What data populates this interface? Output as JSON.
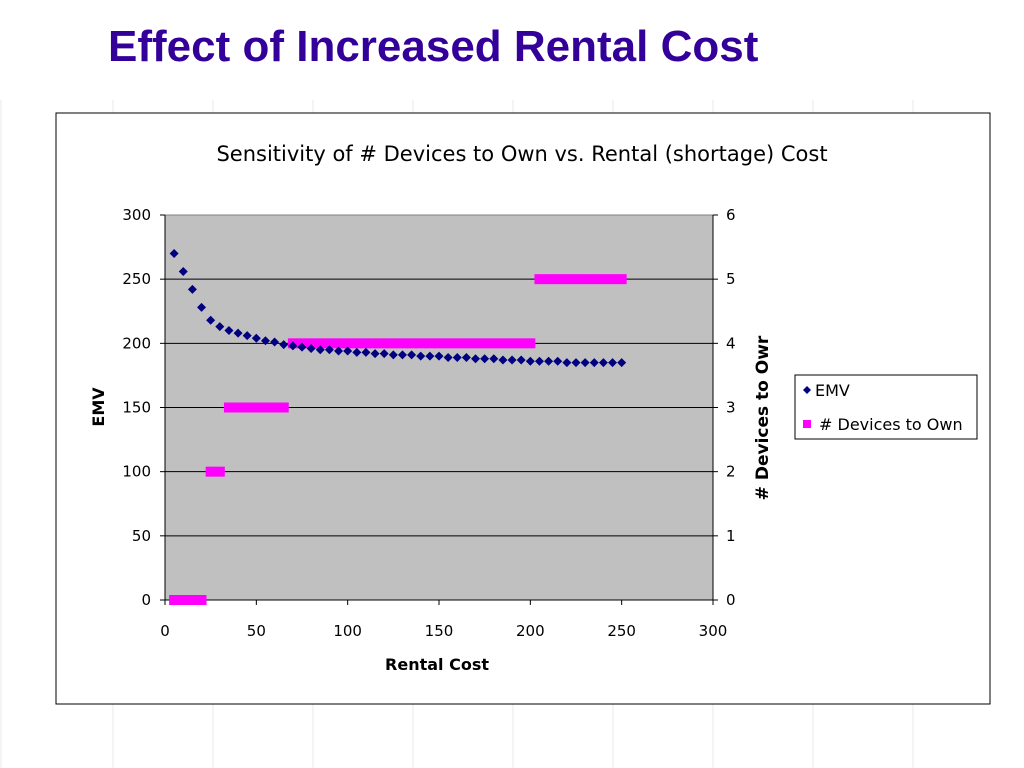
{
  "slide": {
    "title": "Effect of Increased Rental Cost"
  },
  "chart_data": {
    "type": "scatter",
    "title": "Sensitivity of # Devices to Own vs. Rental (shortage) Cost",
    "xlabel": "Rental Cost",
    "ylabel": "EMV",
    "y2label": "# Devices to Owr",
    "xlim": [
      0,
      300
    ],
    "ylim": [
      0,
      300
    ],
    "y2lim": [
      0,
      6
    ],
    "x_ticks": [
      "0",
      "50",
      "100",
      "150",
      "200",
      "250",
      "300"
    ],
    "y_ticks": [
      "0",
      "50",
      "100",
      "150",
      "200",
      "250",
      "300"
    ],
    "y2_ticks": [
      "0",
      "1",
      "2",
      "3",
      "4",
      "5",
      "6"
    ],
    "grid": "horizontal",
    "plot_background": "#c0c0c0",
    "legend_position": "right",
    "series": [
      {
        "name": "EMV",
        "axis": "left",
        "marker": "diamond",
        "color": "#000080",
        "x": [
          5,
          10,
          15,
          20,
          25,
          30,
          35,
          40,
          45,
          50,
          55,
          60,
          65,
          70,
          75,
          80,
          85,
          90,
          95,
          100,
          105,
          110,
          115,
          120,
          125,
          130,
          135,
          140,
          145,
          150,
          155,
          160,
          165,
          170,
          175,
          180,
          185,
          190,
          195,
          200,
          205,
          210,
          215,
          220,
          225,
          230,
          235,
          240,
          245,
          250
        ],
        "y": [
          270,
          256,
          242,
          228,
          218,
          213,
          210,
          208,
          206,
          204,
          202,
          201,
          199,
          198,
          197,
          196,
          195,
          195,
          194,
          194,
          193,
          193,
          192,
          192,
          191,
          191,
          191,
          190,
          190,
          190,
          189,
          189,
          189,
          188,
          188,
          188,
          187,
          187,
          187,
          186,
          186,
          186,
          186,
          185,
          185,
          185,
          185,
          185,
          185,
          185
        ]
      },
      {
        "name": "# Devices to Own",
        "axis": "right",
        "marker": "square",
        "color": "#ff00ff",
        "x": [
          5,
          10,
          15,
          20,
          25,
          30,
          35,
          40,
          45,
          50,
          55,
          60,
          65,
          70,
          75,
          80,
          85,
          90,
          95,
          100,
          105,
          110,
          115,
          120,
          125,
          130,
          135,
          140,
          145,
          150,
          155,
          160,
          165,
          170,
          175,
          180,
          185,
          190,
          195,
          200,
          205,
          210,
          215,
          220,
          225,
          230,
          235,
          240,
          245,
          250
        ],
        "y": [
          0,
          0,
          0,
          0,
          2,
          2,
          3,
          3,
          3,
          3,
          3,
          3,
          3,
          4,
          4,
          4,
          4,
          4,
          4,
          4,
          4,
          4,
          4,
          4,
          4,
          4,
          4,
          4,
          4,
          4,
          4,
          4,
          4,
          4,
          4,
          4,
          4,
          4,
          4,
          4,
          5,
          5,
          5,
          5,
          5,
          5,
          5,
          5,
          5,
          5
        ]
      }
    ]
  }
}
